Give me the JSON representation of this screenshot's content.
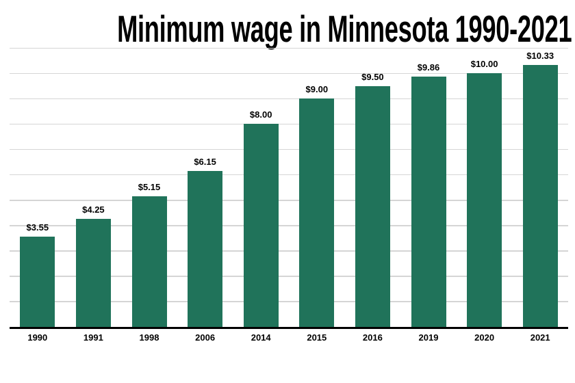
{
  "page": {
    "background_color": "#ffffff"
  },
  "chart_data": {
    "type": "bar",
    "title": "Minimum wage in Minnesota 1990-2021",
    "categories": [
      "1990",
      "1991",
      "1998",
      "2006",
      "2014",
      "2015",
      "2016",
      "2019",
      "2020",
      "2021"
    ],
    "values": [
      3.55,
      4.25,
      5.15,
      6.15,
      8.0,
      9.0,
      9.5,
      9.86,
      10.0,
      10.33
    ],
    "value_labels": [
      "$3.55",
      "$4.25",
      "$5.15",
      "$6.15",
      "$8.00",
      "$9.00",
      "$9.50",
      "$9.86",
      "$10.00",
      "$10.33"
    ],
    "xlabel": "",
    "ylabel": "",
    "ylim": [
      0,
      11
    ],
    "gridline_interval": 1,
    "grid": true,
    "legend": "none",
    "y_axis_tick_labels_visible": false,
    "colors": {
      "bar": "#20735a",
      "gridline": "#d5d5d5",
      "axis": "#000000",
      "title_text": "#000000",
      "label_text": "#000000"
    }
  }
}
